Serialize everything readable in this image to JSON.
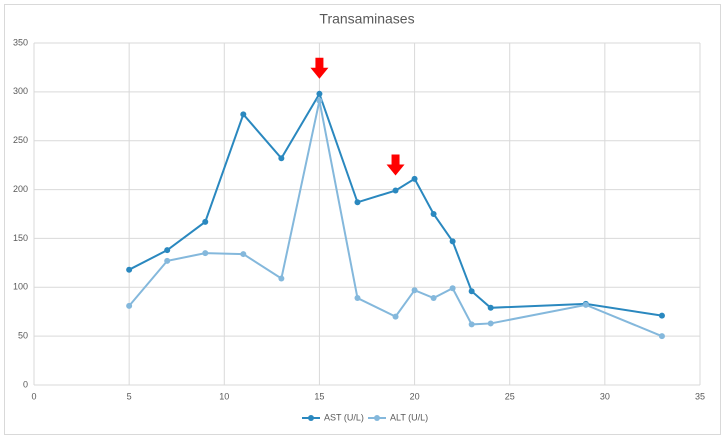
{
  "chart_data": {
    "type": "line",
    "title": "Transaminases",
    "x": [
      5,
      7,
      9,
      11,
      13,
      15,
      17,
      19,
      20,
      21,
      22,
      23,
      24,
      29,
      33
    ],
    "series": [
      {
        "name": "AST (U/L)",
        "color": "#2a88bf",
        "values": [
          118,
          138,
          167,
          277,
          232,
          298,
          187,
          199,
          211,
          175,
          147,
          96,
          79,
          83,
          71
        ]
      },
      {
        "name": "ALT (U/L)",
        "color": "#84b8dc",
        "values": [
          81,
          127,
          135,
          134,
          109,
          291,
          89,
          70,
          97,
          89,
          99,
          62,
          63,
          82,
          50
        ]
      }
    ],
    "xlim": [
      0,
      35
    ],
    "xticks": [
      0,
      5,
      10,
      15,
      20,
      25,
      30,
      35
    ],
    "ylim": [
      0,
      350
    ],
    "yticks": [
      0,
      50,
      100,
      150,
      200,
      250,
      300,
      350
    ],
    "grid": true,
    "legend": "bottom"
  }
}
